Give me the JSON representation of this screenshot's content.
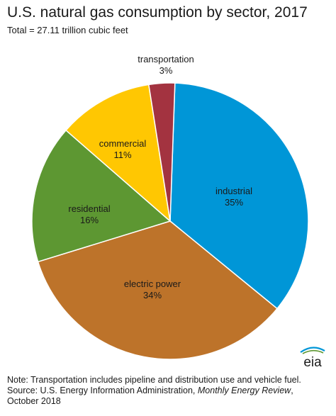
{
  "title": "U.S. natural gas consumption by sector, 2017",
  "subtitle": "Total = 27.11 trillion cubic feet",
  "chart_data": {
    "type": "pie",
    "title": "U.S. natural gas consumption by sector, 2017",
    "subtitle": "Total = 27.11 trillion cubic feet",
    "slices": [
      {
        "label": "industrial",
        "value": 35,
        "display": "35%",
        "color": "#0096D7"
      },
      {
        "label": "electric power",
        "value": 34,
        "display": "34%",
        "color": "#BD732A"
      },
      {
        "label": "residential",
        "value": 16,
        "display": "16%",
        "color": "#5D9732"
      },
      {
        "label": "commercial",
        "value": 11,
        "display": "11%",
        "color": "#FFC702"
      },
      {
        "label": "transportation",
        "value": 3,
        "display": "3%",
        "color": "#A33340"
      }
    ]
  },
  "footer": {
    "note": "Note: Transportation includes pipeline and distribution use and vehicle fuel.",
    "source_prefix": "Source: U.S. Energy Information Administration, ",
    "source_publication": "Monthly Energy Review",
    "source_suffix": ",",
    "source_date": "October 2018"
  },
  "logo": {
    "text": "eia",
    "colors": [
      "#0096D7",
      "#5D9732"
    ]
  }
}
